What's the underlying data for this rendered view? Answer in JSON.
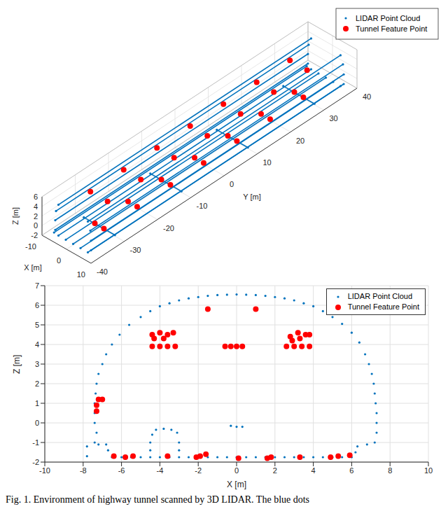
{
  "caption": "Fig. 1. Environment of highway tunnel scanned by 3D LIDAR. The blue dots",
  "chart_data": [
    {
      "type": "scatter3d",
      "xlabel": "X [m]",
      "ylabel": "Y [m]",
      "zlabel": "Z [m]",
      "xlim": [
        -10,
        10
      ],
      "ylim": [
        -40,
        40
      ],
      "zlim": [
        -2,
        6
      ],
      "xticks": [
        -10,
        0,
        10
      ],
      "yticks": [
        -40,
        -30,
        -20,
        -10,
        0,
        10,
        20,
        30,
        40
      ],
      "zticks": [
        -2,
        0,
        2,
        4,
        6
      ],
      "grid": true,
      "legend": "northeast",
      "series": [
        {
          "name": "LIDAR Point Cloud",
          "color": "#0072bd",
          "marker": "point",
          "line_style": "solid",
          "lines": [
            [
              [
                -7.8,
                -38,
                -1.7
              ],
              [
                -7.8,
                38,
                -1.7
              ]
            ],
            [
              [
                -7.3,
                -38,
                -1
              ],
              [
                -7.3,
                38,
                -1
              ]
            ],
            [
              [
                -7.3,
                -38,
                1
              ],
              [
                -7.3,
                38,
                1
              ]
            ],
            [
              [
                -7,
                -38,
                3
              ],
              [
                -7,
                38,
                3
              ]
            ],
            [
              [
                -6,
                -38,
                4.6
              ],
              [
                -6,
                38,
                4.6
              ]
            ],
            [
              [
                7.3,
                -38,
                -1
              ],
              [
                7.3,
                38,
                -1
              ]
            ],
            [
              [
                7.3,
                -38,
                1
              ],
              [
                7.3,
                38,
                1
              ]
            ],
            [
              [
                7,
                -38,
                3
              ],
              [
                7,
                38,
                3
              ]
            ],
            [
              [
                6,
                -38,
                4.6
              ],
              [
                6,
                38,
                4.6
              ]
            ],
            [
              [
                -6,
                -38,
                -1.8
              ],
              [
                -6,
                38,
                -1.8
              ]
            ],
            [
              [
                -3,
                -38,
                -1.8
              ],
              [
                -3,
                38,
                -1.8
              ]
            ],
            [
              [
                0,
                -38,
                -1.8
              ],
              [
                0,
                38,
                -1.8
              ]
            ],
            [
              [
                3,
                -38,
                -1.8
              ],
              [
                3,
                38,
                -1.8
              ]
            ],
            [
              [
                6,
                -38,
                -1.8
              ],
              [
                6,
                38,
                -1.8
              ]
            ],
            [
              [
                -6.5,
                -30,
                -1.8
              ],
              [
                6.2,
                -30,
                -1.8
              ]
            ],
            [
              [
                -6.5,
                -10,
                -1.8
              ],
              [
                6.2,
                -10,
                -1.8
              ]
            ],
            [
              [
                -6.5,
                10,
                -1.8
              ],
              [
                6.2,
                10,
                -1.8
              ]
            ],
            [
              [
                -6.5,
                30,
                -1.8
              ],
              [
                6.2,
                30,
                -1.8
              ]
            ]
          ]
        },
        {
          "name": "Tunnel Feature Point",
          "color": "#ff0000",
          "marker": "circle",
          "points": [
            [
              -3.8,
              -30,
              4.3
            ],
            [
              3.2,
              -30,
              4.3
            ],
            [
              -2,
              -30,
              -1.75
            ],
            [
              1.7,
              -30,
              -1.75
            ],
            [
              -3.8,
              -20,
              4.3
            ],
            [
              3.2,
              -20,
              4.3
            ],
            [
              -2,
              -20,
              -1.75
            ],
            [
              1.7,
              -20,
              -1.75
            ],
            [
              -3.8,
              -10,
              4.3
            ],
            [
              3.2,
              -10,
              4.3
            ],
            [
              -2,
              -10,
              -1.75
            ],
            [
              1.7,
              -10,
              -1.75
            ],
            [
              -3.8,
              0,
              4.3
            ],
            [
              3.2,
              0,
              4.3
            ],
            [
              -2,
              0,
              -1.75
            ],
            [
              1.7,
              0,
              -1.75
            ],
            [
              -3.8,
              10,
              4.3
            ],
            [
              3.2,
              10,
              4.3
            ],
            [
              -2,
              10,
              -1.75
            ],
            [
              1.7,
              10,
              -1.75
            ],
            [
              -3.8,
              20,
              4.3
            ],
            [
              3.2,
              20,
              4.3
            ],
            [
              -2,
              20,
              -1.75
            ],
            [
              1.7,
              20,
              -1.75
            ],
            [
              -3.8,
              30,
              4.3
            ],
            [
              3.2,
              30,
              4.3
            ],
            [
              -2,
              30,
              -1.75
            ],
            [
              1.7,
              30,
              -1.75
            ]
          ]
        }
      ]
    },
    {
      "type": "scatter",
      "xlabel": "X [m]",
      "ylabel": "Z [m]",
      "xlim": [
        -10,
        10
      ],
      "ylim": [
        -2,
        7
      ],
      "xticks": [
        -10,
        -8,
        -6,
        -4,
        -2,
        0,
        2,
        4,
        6,
        8,
        10
      ],
      "yticks": [
        -2,
        -1,
        0,
        1,
        2,
        3,
        4,
        5,
        6,
        7
      ],
      "grid": true,
      "legend": "northeast",
      "series": [
        {
          "name": "LIDAR Point Cloud",
          "color": "#0072bd",
          "marker": "point",
          "points": [
            [
              -7.8,
              -1.7
            ],
            [
              -7.8,
              -1.2
            ],
            [
              -7.4,
              -1.0
            ],
            [
              -7.3,
              -0.5
            ],
            [
              -7.4,
              0
            ],
            [
              -7.4,
              0.5
            ],
            [
              -7.4,
              1.0
            ],
            [
              -7.35,
              1.5
            ],
            [
              -7.3,
              2.0
            ],
            [
              -7.2,
              2.5
            ],
            [
              -7.0,
              3.0
            ],
            [
              -6.8,
              3.5
            ],
            [
              -6.5,
              4.0
            ],
            [
              -6.1,
              4.5
            ],
            [
              -5.6,
              5.0
            ],
            [
              -5.0,
              5.4
            ],
            [
              -4.5,
              5.7
            ],
            [
              -4.0,
              5.95
            ],
            [
              -3.5,
              6.1
            ],
            [
              -3.0,
              6.25
            ],
            [
              -2.5,
              6.35
            ],
            [
              -2.0,
              6.42
            ],
            [
              -1.5,
              6.48
            ],
            [
              -1.0,
              6.52
            ],
            [
              -0.5,
              6.54
            ],
            [
              0,
              6.55
            ],
            [
              0.5,
              6.54
            ],
            [
              1.0,
              6.52
            ],
            [
              1.5,
              6.48
            ],
            [
              2.0,
              6.42
            ],
            [
              2.5,
              6.35
            ],
            [
              3.0,
              6.25
            ],
            [
              3.5,
              6.1
            ],
            [
              4.0,
              5.95
            ],
            [
              4.5,
              5.7
            ],
            [
              5.0,
              5.4
            ],
            [
              5.5,
              5.05
            ],
            [
              6.0,
              4.6
            ],
            [
              6.4,
              4.1
            ],
            [
              6.7,
              3.5
            ],
            [
              6.9,
              3.0
            ],
            [
              7.05,
              2.5
            ],
            [
              7.15,
              2.0
            ],
            [
              7.2,
              1.5
            ],
            [
              7.25,
              1.0
            ],
            [
              7.3,
              0.5
            ],
            [
              7.3,
              0
            ],
            [
              7.3,
              -0.5
            ],
            [
              7.2,
              -1.0
            ],
            [
              6.8,
              -1.1
            ],
            [
              6.3,
              -1.2
            ],
            [
              6.2,
              -1.5
            ],
            [
              6.0,
              -1.75
            ],
            [
              5.5,
              -1.75
            ],
            [
              5.0,
              -1.75
            ],
            [
              4.5,
              -1.75
            ],
            [
              4.0,
              -1.75
            ],
            [
              3.5,
              -1.75
            ],
            [
              3.0,
              -1.75
            ],
            [
              2.5,
              -1.75
            ],
            [
              2.0,
              -1.75
            ],
            [
              1.5,
              -1.75
            ],
            [
              1.0,
              -1.75
            ],
            [
              0.5,
              -1.75
            ],
            [
              0,
              -1.75
            ],
            [
              -0.5,
              -1.75
            ],
            [
              -1.0,
              -1.75
            ],
            [
              -1.5,
              -1.75
            ],
            [
              -2.0,
              -1.75
            ],
            [
              -2.5,
              -1.75
            ],
            [
              -3.0,
              -1.75
            ],
            [
              -3.5,
              -1.75
            ],
            [
              -4.0,
              -1.75
            ],
            [
              -4.5,
              -1.75
            ],
            [
              -5.0,
              -1.75
            ],
            [
              -5.5,
              -1.75
            ],
            [
              -6.0,
              -1.75
            ],
            [
              -6.5,
              -1.75
            ],
            [
              -6.7,
              -1.4
            ],
            [
              -6.8,
              -1.1
            ],
            [
              -7.2,
              -1.1
            ],
            [
              -4.2,
              -0.35
            ],
            [
              -3.8,
              -0.3
            ],
            [
              -3.4,
              -0.35
            ],
            [
              -3.1,
              -0.5
            ],
            [
              -4.4,
              -0.6
            ],
            [
              -4.5,
              -1.0
            ],
            [
              -3.0,
              -1.0
            ],
            [
              -4.5,
              -1.4
            ],
            [
              -3.0,
              -1.4
            ],
            [
              -0.3,
              -0.15
            ],
            [
              0,
              -0.2
            ],
            [
              0.3,
              -0.2
            ]
          ]
        },
        {
          "name": "Tunnel Feature Point",
          "color": "#ff0000",
          "marker": "circle",
          "points": [
            [
              -1.5,
              5.8
            ],
            [
              1.0,
              5.8
            ],
            [
              -4.4,
              4.5
            ],
            [
              -4.0,
              4.6
            ],
            [
              -3.6,
              4.5
            ],
            [
              -3.3,
              4.6
            ],
            [
              -4.3,
              4.3
            ],
            [
              -3.8,
              4.3
            ],
            [
              -4.4,
              3.9
            ],
            [
              -4.0,
              3.9
            ],
            [
              -3.6,
              3.9
            ],
            [
              -3.2,
              3.9
            ],
            [
              -0.6,
              3.9
            ],
            [
              -0.3,
              3.9
            ],
            [
              0,
              3.9
            ],
            [
              0.3,
              3.9
            ],
            [
              2.8,
              4.4
            ],
            [
              3.2,
              4.6
            ],
            [
              3.6,
              4.5
            ],
            [
              3.3,
              4.3
            ],
            [
              2.9,
              4.2
            ],
            [
              2.6,
              3.9
            ],
            [
              3.0,
              3.9
            ],
            [
              3.4,
              3.9
            ],
            [
              3.8,
              3.9
            ],
            [
              3.8,
              4.5
            ],
            [
              -7.2,
              1.2
            ],
            [
              -7.3,
              0.9
            ],
            [
              -7.3,
              0.6
            ],
            [
              -7.0,
              1.2
            ],
            [
              -6.4,
              -1.7
            ],
            [
              -5.8,
              -1.75
            ],
            [
              -5.4,
              -1.7
            ],
            [
              -3.6,
              -1.7
            ],
            [
              -2.1,
              -1.75
            ],
            [
              -1.9,
              -1.7
            ],
            [
              -1.6,
              -1.6
            ],
            [
              0.1,
              -1.8
            ],
            [
              1.6,
              -1.8
            ],
            [
              1.8,
              -1.75
            ],
            [
              3.3,
              -1.75
            ],
            [
              4.9,
              -1.75
            ],
            [
              5.3,
              -1.7
            ],
            [
              5.9,
              -1.65
            ]
          ]
        }
      ]
    }
  ]
}
